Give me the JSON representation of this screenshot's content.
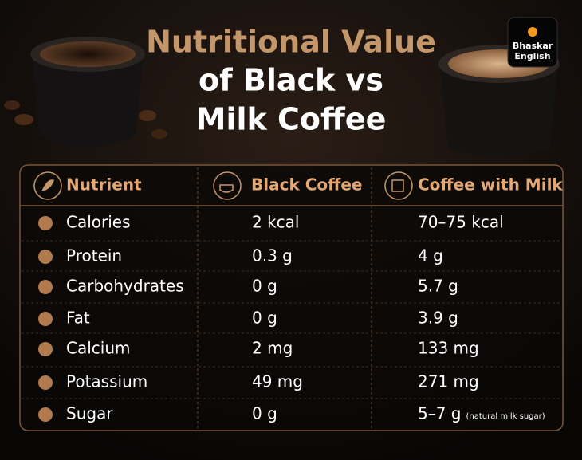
{
  "header": {
    "title_line1": "Nutritional Value",
    "title_line2": "of Black vs",
    "title_line3": "Milk Coffee"
  },
  "logo": {
    "line1": "Bhaskar",
    "line2": "English"
  },
  "table": {
    "columns": [
      "Nutrient",
      "Black Coffee",
      "Coffee with Milk"
    ],
    "rows": [
      [
        "Calories",
        "2 kcal",
        "70–75 kcal"
      ],
      [
        "Protein",
        "0.3 g",
        "4 g"
      ],
      [
        "Carbohydrates",
        "0 g",
        "5.7 g"
      ],
      [
        "Fat",
        "0 g",
        "3.9 g"
      ],
      [
        "Calcium",
        "2 mg",
        "133 mg"
      ],
      [
        "Potassium",
        "49 mg",
        "271 mg"
      ],
      [
        "Sugar",
        "0 g",
        "5–7 g"
      ]
    ],
    "sugar_note": "(natural milk sugar)"
  }
}
